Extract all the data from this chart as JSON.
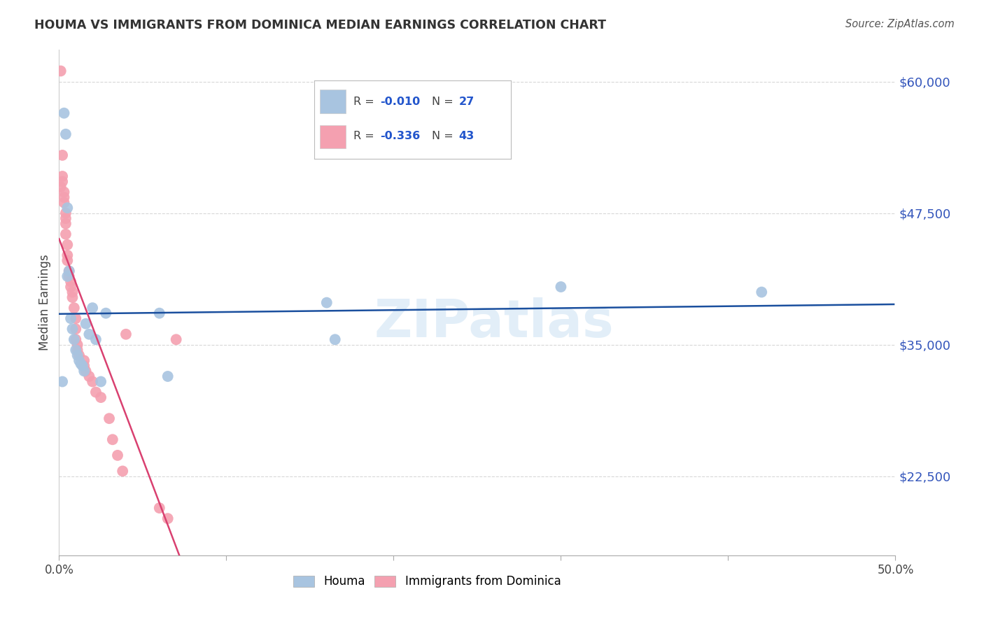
{
  "title": "HOUMA VS IMMIGRANTS FROM DOMINICA MEDIAN EARNINGS CORRELATION CHART",
  "source": "Source: ZipAtlas.com",
  "xlabel": "",
  "ylabel": "Median Earnings",
  "xlim": [
    0.0,
    0.5
  ],
  "ylim": [
    15000,
    63000
  ],
  "yticks": [
    22500,
    35000,
    47500,
    60000
  ],
  "ytick_labels": [
    "$22,500",
    "$35,000",
    "$47,500",
    "$60,000"
  ],
  "xticks": [
    0.0,
    0.1,
    0.2,
    0.3,
    0.4,
    0.5
  ],
  "xtick_labels": [
    "0.0%",
    "",
    "",
    "",
    "",
    "50.0%"
  ],
  "color_houma": "#a8c4e0",
  "color_dominica": "#f4a0b0",
  "color_line_houma": "#1a4f9e",
  "color_line_dominica": "#d94070",
  "color_line_dominica_dashed": "#e8a0b8",
  "watermark": "ZIPatlas",
  "houma_x": [
    0.002,
    0.003,
    0.004,
    0.005,
    0.005,
    0.006,
    0.007,
    0.008,
    0.009,
    0.01,
    0.011,
    0.012,
    0.013,
    0.014,
    0.015,
    0.016,
    0.018,
    0.02,
    0.022,
    0.025,
    0.028,
    0.06,
    0.065,
    0.16,
    0.165,
    0.3,
    0.42
  ],
  "houma_y": [
    31500,
    57000,
    55000,
    48000,
    41500,
    42000,
    37500,
    36500,
    35500,
    34500,
    34000,
    33500,
    33200,
    33000,
    32500,
    37000,
    36000,
    38500,
    35500,
    31500,
    38000,
    38000,
    32000,
    39000,
    35500,
    40500,
    40000
  ],
  "dominica_x": [
    0.001,
    0.001,
    0.002,
    0.002,
    0.002,
    0.003,
    0.003,
    0.003,
    0.004,
    0.004,
    0.004,
    0.004,
    0.005,
    0.005,
    0.005,
    0.006,
    0.006,
    0.007,
    0.007,
    0.008,
    0.008,
    0.009,
    0.01,
    0.01,
    0.01,
    0.011,
    0.011,
    0.012,
    0.015,
    0.015,
    0.016,
    0.018,
    0.02,
    0.022,
    0.025,
    0.03,
    0.032,
    0.035,
    0.038,
    0.04,
    0.06,
    0.065,
    0.07
  ],
  "dominica_y": [
    61000,
    50000,
    53000,
    51000,
    50500,
    49500,
    49000,
    48500,
    47500,
    47000,
    46500,
    45500,
    44500,
    43500,
    43000,
    42000,
    41500,
    41000,
    40500,
    40000,
    39500,
    38500,
    37500,
    36500,
    35500,
    35000,
    34500,
    34000,
    33500,
    33000,
    32500,
    32000,
    31500,
    30500,
    30000,
    28000,
    26000,
    24500,
    23000,
    36000,
    19500,
    18500,
    35500
  ],
  "background_color": "#ffffff",
  "grid_color": "#d8d8d8",
  "houma_line_intercept": 37200,
  "houma_line_slope": -370,
  "dominica_line_intercept": 44500,
  "dominica_line_slope": -320000
}
